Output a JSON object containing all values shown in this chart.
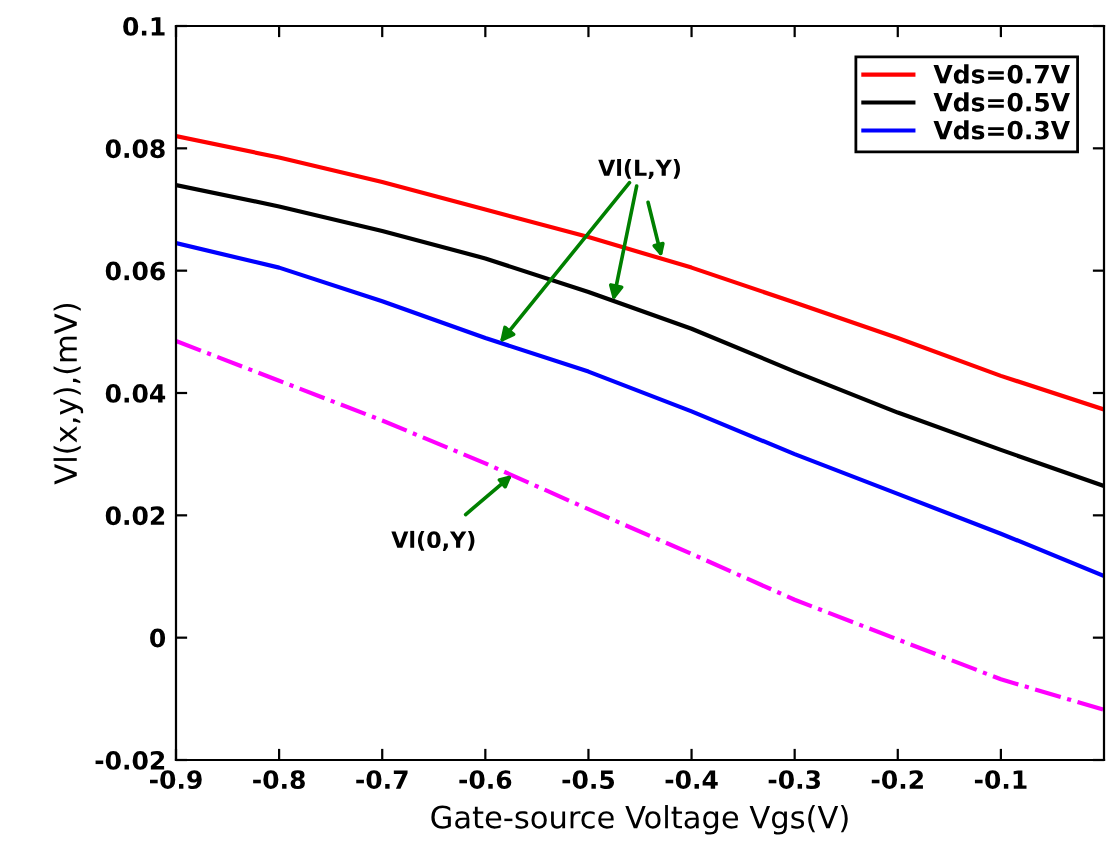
{
  "chart_data": {
    "type": "line",
    "xlabel": "Gate-source Voltage Vgs(V)",
    "ylabel": "Vl(x,y),(mV)",
    "x": [
      -0.9,
      -0.8,
      -0.7,
      -0.6,
      -0.5,
      -0.4,
      -0.3,
      -0.2,
      -0.1,
      0
    ],
    "series": [
      {
        "name": "Vds=0.7V",
        "color": "#ff0000",
        "values": [
          0.082,
          0.0785,
          0.0745,
          0.07,
          0.0655,
          0.0605,
          0.0548,
          0.049,
          0.0428,
          0.0373
        ]
      },
      {
        "name": "Vds=0.5V",
        "color": "#000000",
        "values": [
          0.074,
          0.0705,
          0.0665,
          0.062,
          0.0565,
          0.0505,
          0.0435,
          0.0368,
          0.0307,
          0.0248
        ]
      },
      {
        "name": "Vds=0.3V",
        "color": "#0000ff",
        "values": [
          0.0645,
          0.0605,
          0.055,
          0.049,
          0.0435,
          0.037,
          0.03,
          0.0235,
          0.017,
          0.0101
        ]
      },
      {
        "color": "#ff00ff",
        "line_style": "dashdot",
        "values": [
          0.0485,
          0.042,
          0.0355,
          0.0285,
          0.021,
          0.0137,
          0.0062,
          -0.0003,
          -0.0068,
          -0.0118
        ]
      }
    ],
    "xlim": [
      -0.9,
      0
    ],
    "ylim": [
      -0.02,
      0.1
    ],
    "xticks": [
      -0.9,
      -0.8,
      -0.7,
      -0.6,
      -0.5,
      -0.4,
      -0.3,
      -0.2,
      -0.1
    ],
    "yticks": [
      -0.02,
      0,
      0.02,
      0.04,
      0.06,
      0.08,
      0.1
    ],
    "annotations": [
      {
        "text": "Vl(L,Y)",
        "x": -0.429,
        "y": 0.0622
      },
      {
        "text": "Vl(0,Y)",
        "x": -0.574,
        "y": 0.0266
      }
    ],
    "legend": "top right",
    "grid": false,
    "line_style": "solid",
    "marker": "none"
  }
}
